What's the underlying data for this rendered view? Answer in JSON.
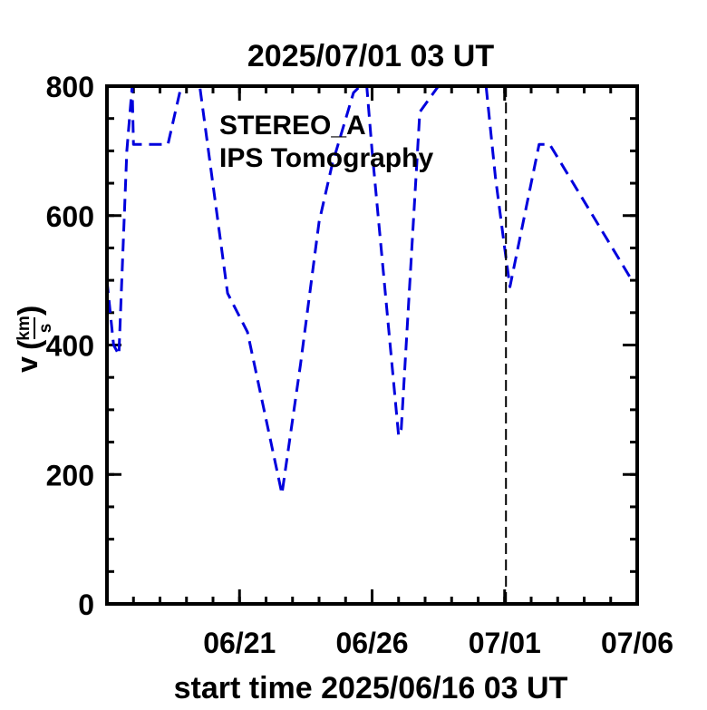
{
  "chart_data": {
    "type": "line",
    "title": "2025/07/01 03 UT",
    "xlabel": "start time 2025/06/16 03 UT",
    "ylabel": "v",
    "ylabel_unit_num": "km",
    "ylabel_unit_den": "s",
    "xlim": [
      0,
      20
    ],
    "ylim": [
      0,
      800
    ],
    "y_ticks": [
      0,
      200,
      400,
      600,
      800
    ],
    "y_tick_labels": [
      "0",
      "200",
      "400",
      "600",
      "800"
    ],
    "x_ticks": [
      5,
      10,
      15,
      20
    ],
    "x_tick_labels": [
      "06/21",
      "06/26",
      "07/01",
      "07/06"
    ],
    "x_minor_step": 1,
    "y_minor_step": 50,
    "vline_x": 15.05,
    "legend": {
      "position": "top-center",
      "lines": [
        "STEREO_A",
        "IPS Tomography"
      ]
    },
    "series": [
      {
        "name": "STEREO_A IPS Tomography",
        "color": "#0000dd",
        "style": "dashed",
        "x": [
          0.0,
          0.25,
          0.45,
          0.75,
          0.95,
          1.0,
          1.7,
          2.3,
          2.8,
          3.5,
          4.55,
          5.3,
          6.6,
          7.3,
          8.0,
          8.5,
          9.3,
          9.55,
          9.8,
          10.0,
          11.0,
          11.1,
          11.8,
          12.5,
          14.3,
          14.65,
          15.0,
          15.2,
          16.3,
          16.7,
          19.8
        ],
        "y": [
          500,
          400,
          385,
          700,
          800,
          710,
          710,
          710,
          800,
          800,
          480,
          420,
          170,
          370,
          590,
          680,
          790,
          800,
          800,
          700,
          260,
          270,
          760,
          800,
          800,
          660,
          550,
          490,
          710,
          710,
          500
        ]
      }
    ]
  }
}
